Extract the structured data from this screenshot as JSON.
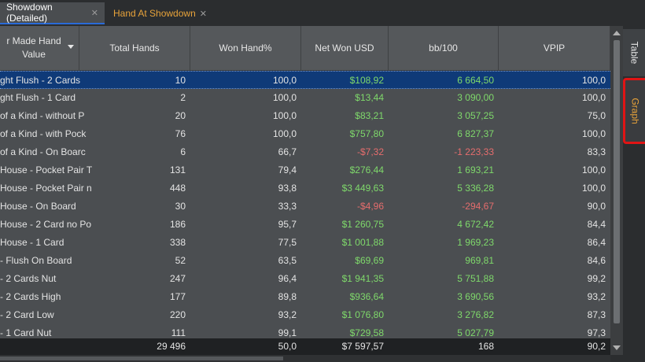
{
  "tabs": [
    {
      "label": "Showdown (Detailed)",
      "close": "✕"
    },
    {
      "label": "Hand At Showdown",
      "close": "✕"
    }
  ],
  "side_tabs": [
    {
      "label": "Table"
    },
    {
      "label": "Graph"
    }
  ],
  "columns": [
    "r Made Hand Value",
    "Total Hands",
    "Won Hand%",
    "Net Won USD",
    "bb/100",
    "VPIP"
  ],
  "rows": [
    [
      "ght Flush - 2 Cards",
      "10",
      "100,0",
      "$108,92",
      "6 664,50",
      "100,0"
    ],
    [
      "ght Flush - 1 Card",
      "2",
      "100,0",
      "$13,44",
      "3 090,00",
      "100,0"
    ],
    [
      "of a Kind - without P",
      "20",
      "100,0",
      "$83,21",
      "3 057,25",
      "75,0"
    ],
    [
      "of a Kind - with Pock",
      "76",
      "100,0",
      "$757,80",
      "6 827,37",
      "100,0"
    ],
    [
      "of a Kind - On Boarc",
      "6",
      "66,7",
      "-$7,32",
      "-1 223,33",
      "83,3"
    ],
    [
      "House - Pocket Pair T",
      "131",
      "79,4",
      "$276,44",
      "1 693,21",
      "100,0"
    ],
    [
      "House - Pocket Pair n",
      "448",
      "93,8",
      "$3 449,63",
      "5 336,28",
      "100,0"
    ],
    [
      "House - On Board",
      "30",
      "33,3",
      "-$4,96",
      "-294,67",
      "90,0"
    ],
    [
      "House - 2 Card no Po",
      "186",
      "95,7",
      "$1 260,75",
      "4 672,42",
      "84,4"
    ],
    [
      "House - 1 Card",
      "338",
      "77,5",
      "$1 001,88",
      "1 969,23",
      "86,4"
    ],
    [
      "- Flush On Board",
      "52",
      "63,5",
      "$69,69",
      "969,81",
      "84,6"
    ],
    [
      "- 2 Cards Nut",
      "247",
      "96,4",
      "$1 941,35",
      "5 751,88",
      "99,2"
    ],
    [
      "- 2 Cards High",
      "177",
      "89,8",
      "$936,64",
      "3 690,56",
      "93,2"
    ],
    [
      "- 2 Card Low",
      "220",
      "93,2",
      "$1 076,80",
      "3 276,82",
      "87,3"
    ],
    [
      "- 1 Card Nut",
      "111",
      "99,1",
      "$729,58",
      "5 027,79",
      "97,3"
    ]
  ],
  "selected_row": 0,
  "totals": [
    "",
    "29 496",
    "50,0",
    "$7 597,57",
    "168",
    "90,2"
  ],
  "colors": {
    "positive": "#7fd96b",
    "negative": "#e56d6d",
    "selection": "#0f3a78",
    "highlight_border": "#e01414",
    "accent_tab": "#e8a33a"
  }
}
